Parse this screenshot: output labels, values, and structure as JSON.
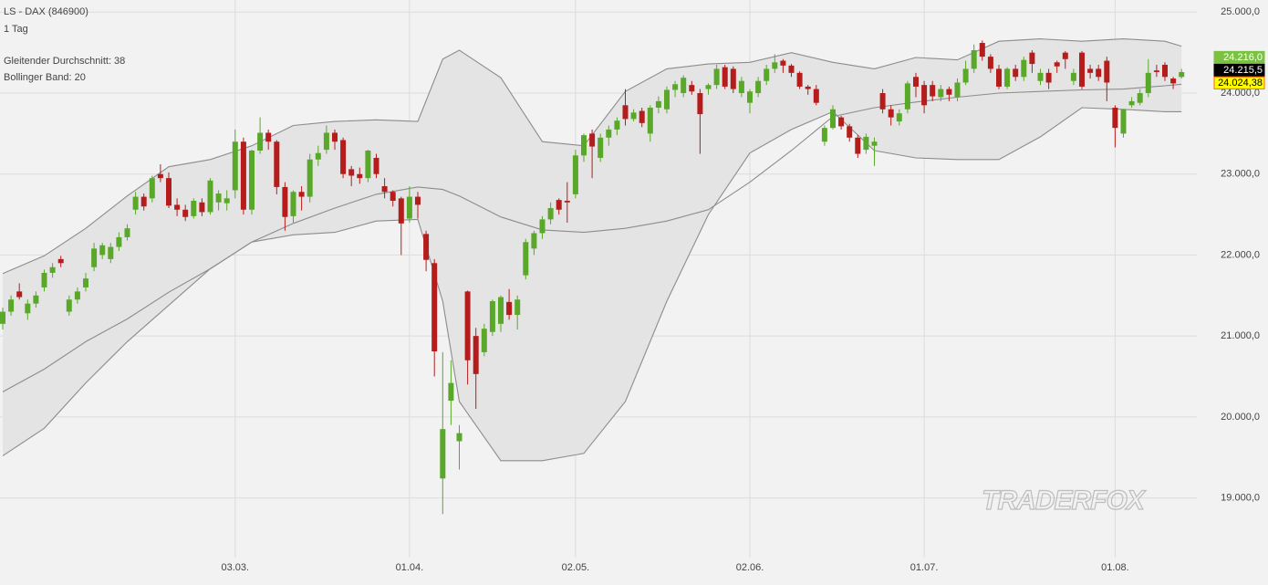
{
  "chart_data": {
    "type": "candlestick",
    "title": "LS - DAX (846900)",
    "subtitle": "1 Tag",
    "indicators": [
      "Gleitender Durchschnitt: 38",
      "Bollinger Band: 20"
    ],
    "watermark": "TRADERFOX",
    "up_color": "#5aa82a",
    "down_color": "#b51d1d",
    "band_color": "#8c8c8c",
    "band_fill": "#e4e4e4",
    "grid": true,
    "ylim": [
      18330,
      25150
    ],
    "yticks": [
      {
        "value": 19000,
        "label": "19.000,0"
      },
      {
        "value": 20000,
        "label": "20.000,0"
      },
      {
        "value": 21000,
        "label": "21.000,0"
      },
      {
        "value": 22000,
        "label": "22.000,0"
      },
      {
        "value": 23000,
        "label": "23.000,0"
      },
      {
        "value": 24000,
        "label": "24.000,0"
      },
      {
        "value": 25000,
        "label": "25.000,0"
      }
    ],
    "categories": [
      null,
      null,
      null,
      null,
      null,
      null,
      null,
      null,
      null,
      null,
      null,
      null,
      null,
      null,
      null,
      null,
      null,
      null,
      null,
      null,
      null,
      null,
      null,
      null,
      null,
      null,
      null,
      null,
      "03.03.",
      null,
      null,
      null,
      null,
      null,
      null,
      null,
      null,
      null,
      null,
      null,
      null,
      null,
      null,
      null,
      null,
      null,
      null,
      null,
      null,
      "01.04.",
      null,
      null,
      null,
      null,
      null,
      null,
      null,
      null,
      null,
      null,
      null,
      null,
      null,
      null,
      null,
      null,
      null,
      null,
      null,
      "02.05.",
      null,
      null,
      null,
      null,
      null,
      null,
      null,
      null,
      null,
      null,
      null,
      null,
      null,
      null,
      null,
      null,
      null,
      null,
      null,
      null,
      "02.06.",
      null,
      null,
      null,
      null,
      null,
      null,
      null,
      null,
      null,
      null,
      null,
      null,
      null,
      null,
      null,
      null,
      null,
      null,
      null,
      null,
      "01.07.",
      null,
      null,
      null,
      null,
      null,
      null,
      null,
      null,
      null,
      null,
      null,
      null,
      null,
      null,
      null,
      null,
      null,
      null,
      null,
      null,
      null,
      null,
      "01.08.",
      null,
      null,
      null,
      null,
      null,
      null,
      null,
      null
    ],
    "ohlc": [
      [
        21150,
        21350,
        21080,
        21300
      ],
      [
        21300,
        21500,
        21250,
        21450
      ],
      [
        21550,
        21650,
        21450,
        21480
      ],
      [
        21280,
        21450,
        21200,
        21400
      ],
      [
        21400,
        21550,
        21350,
        21500
      ],
      [
        21600,
        21820,
        21550,
        21780
      ],
      [
        21780,
        21900,
        21720,
        21850
      ],
      [
        21950,
        21990,
        21850,
        21900
      ],
      [
        21300,
        21500,
        21250,
        21450
      ],
      [
        21450,
        21600,
        21400,
        21550
      ],
      [
        21600,
        21780,
        21550,
        21710
      ],
      [
        21850,
        22150,
        21800,
        22080
      ],
      [
        22000,
        22150,
        21950,
        22120
      ],
      [
        21950,
        22150,
        21900,
        22100
      ],
      [
        22100,
        22280,
        22050,
        22220
      ],
      [
        22220,
        22380,
        22180,
        22330
      ],
      [
        22560,
        22780,
        22500,
        22720
      ],
      [
        22720,
        22760,
        22550,
        22600
      ],
      [
        22700,
        22980,
        22650,
        22950
      ],
      [
        23000,
        23120,
        22900,
        22950
      ],
      [
        22950,
        23020,
        22580,
        22610
      ],
      [
        22620,
        22700,
        22480,
        22560
      ],
      [
        22560,
        22620,
        22420,
        22470
      ],
      [
        22480,
        22700,
        22450,
        22670
      ],
      [
        22650,
        22700,
        22480,
        22530
      ],
      [
        22530,
        22950,
        22500,
        22920
      ],
      [
        22650,
        22800,
        22550,
        22760
      ],
      [
        22640,
        22800,
        22550,
        22700
      ],
      [
        22800,
        23550,
        22700,
        23400
      ],
      [
        23400,
        23450,
        22500,
        22560
      ],
      [
        22560,
        23300,
        22500,
        23290
      ],
      [
        23290,
        23700,
        23250,
        23510
      ],
      [
        23510,
        23550,
        23300,
        23400
      ],
      [
        23400,
        23420,
        22750,
        22840
      ],
      [
        22840,
        22900,
        22300,
        22470
      ],
      [
        22480,
        22800,
        22400,
        22780
      ],
      [
        22780,
        22850,
        22550,
        22720
      ],
      [
        22720,
        23250,
        22650,
        23180
      ],
      [
        23180,
        23350,
        23100,
        23260
      ],
      [
        23300,
        23600,
        23250,
        23510
      ],
      [
        23510,
        23550,
        23300,
        23400
      ],
      [
        23420,
        23450,
        22950,
        23000
      ],
      [
        23060,
        23100,
        22850,
        22980
      ],
      [
        23000,
        23080,
        22880,
        22950
      ],
      [
        22950,
        23300,
        22900,
        23290
      ],
      [
        23200,
        23250,
        22950,
        23000
      ],
      [
        22850,
        22950,
        22700,
        22780
      ],
      [
        22780,
        22800,
        22600,
        22670
      ],
      [
        22700,
        22720,
        22000,
        22390
      ],
      [
        22450,
        22850,
        22400,
        22720
      ],
      [
        22720,
        22780,
        22450,
        22620
      ],
      [
        22260,
        22300,
        21800,
        21940
      ],
      [
        21900,
        21950,
        20500,
        20810
      ],
      [
        19240,
        20800,
        18800,
        19850
      ],
      [
        20200,
        20700,
        19900,
        20420
      ],
      [
        19700,
        19900,
        19350,
        19800
      ],
      [
        21550,
        21560,
        20400,
        20700
      ],
      [
        21000,
        21100,
        20100,
        20530
      ],
      [
        20800,
        21150,
        20750,
        21090
      ],
      [
        21050,
        21450,
        21000,
        21430
      ],
      [
        21150,
        21500,
        21050,
        21480
      ],
      [
        21420,
        21580,
        21200,
        21260
      ],
      [
        21260,
        21500,
        21080,
        21450
      ],
      [
        21750,
        22200,
        21700,
        22160
      ],
      [
        22080,
        22300,
        22000,
        22270
      ],
      [
        22270,
        22480,
        22200,
        22440
      ],
      [
        22440,
        22650,
        22380,
        22580
      ],
      [
        22680,
        22700,
        22500,
        22560
      ],
      [
        22670,
        22900,
        22400,
        22650
      ],
      [
        22750,
        23300,
        22700,
        23230
      ],
      [
        23230,
        23500,
        23150,
        23480
      ],
      [
        23500,
        23550,
        22950,
        23340
      ],
      [
        23200,
        23500,
        23150,
        23450
      ],
      [
        23450,
        23600,
        23350,
        23550
      ],
      [
        23550,
        23700,
        23480,
        23660
      ],
      [
        23850,
        24050,
        23600,
        23680
      ],
      [
        23680,
        23800,
        23650,
        23760
      ],
      [
        23780,
        23820,
        23580,
        23630
      ],
      [
        23500,
        23850,
        23400,
        23820
      ],
      [
        23820,
        23960,
        23750,
        23900
      ],
      [
        23800,
        24080,
        23750,
        24040
      ],
      [
        24040,
        24150,
        23950,
        24110
      ],
      [
        24000,
        24220,
        23950,
        24190
      ],
      [
        24100,
        24150,
        23980,
        24020
      ],
      [
        24000,
        24050,
        23250,
        23740
      ],
      [
        24050,
        24120,
        23980,
        24100
      ],
      [
        24100,
        24350,
        24050,
        24300
      ],
      [
        24320,
        24350,
        24050,
        24080
      ],
      [
        24300,
        24330,
        24000,
        24050
      ],
      [
        24000,
        24200,
        23950,
        24150
      ],
      [
        23880,
        24050,
        23750,
        24020
      ],
      [
        24000,
        24200,
        23950,
        24150
      ],
      [
        24150,
        24350,
        24100,
        24300
      ],
      [
        24300,
        24480,
        24250,
        24380
      ],
      [
        24400,
        24420,
        24250,
        24340
      ],
      [
        24340,
        24360,
        24200,
        24250
      ],
      [
        24250,
        24270,
        24050,
        24080
      ],
      [
        24080,
        24100,
        23980,
        24050
      ],
      [
        24050,
        24100,
        23850,
        23880
      ],
      [
        23400,
        23600,
        23350,
        23570
      ],
      [
        23570,
        23850,
        23550,
        23800
      ],
      [
        23700,
        23720,
        23550,
        23590
      ],
      [
        23590,
        23620,
        23400,
        23450
      ],
      [
        23450,
        23480,
        23200,
        23250
      ],
      [
        23300,
        23500,
        23250,
        23460
      ],
      [
        23350,
        23450,
        23100,
        23400
      ],
      [
        24000,
        24050,
        23750,
        23800
      ],
      [
        23800,
        23850,
        23600,
        23700
      ],
      [
        23650,
        23800,
        23600,
        23750
      ],
      [
        23800,
        24150,
        23750,
        24120
      ],
      [
        24200,
        24250,
        23950,
        24080
      ],
      [
        24100,
        24150,
        23750,
        23850
      ],
      [
        24100,
        24150,
        23900,
        23960
      ],
      [
        23950,
        24100,
        23900,
        24050
      ],
      [
        24050,
        24080,
        23900,
        23980
      ],
      [
        23950,
        24180,
        23900,
        24130
      ],
      [
        24130,
        24400,
        24100,
        24300
      ],
      [
        24300,
        24600,
        24250,
        24530
      ],
      [
        24620,
        24650,
        24400,
        24450
      ],
      [
        24450,
        24480,
        24250,
        24300
      ],
      [
        24300,
        24350,
        24050,
        24080
      ],
      [
        24080,
        24320,
        24050,
        24300
      ],
      [
        24300,
        24350,
        24150,
        24200
      ],
      [
        24200,
        24450,
        24150,
        24410
      ],
      [
        24500,
        24530,
        24250,
        24360
      ],
      [
        24150,
        24300,
        24100,
        24250
      ],
      [
        24250,
        24300,
        24050,
        24130
      ],
      [
        24380,
        24400,
        24250,
        24330
      ],
      [
        24500,
        24520,
        24300,
        24420
      ],
      [
        24150,
        24300,
        24100,
        24250
      ],
      [
        24500,
        24520,
        24050,
        24080
      ],
      [
        24300,
        24350,
        24180,
        24250
      ],
      [
        24300,
        24350,
        24150,
        24200
      ],
      [
        24400,
        24450,
        23900,
        24130
      ],
      [
        23820,
        23850,
        23330,
        23570
      ],
      [
        23500,
        23800,
        23450,
        23800
      ],
      [
        23850,
        23950,
        23820,
        23900
      ],
      [
        23880,
        24050,
        23850,
        24000
      ],
      [
        24000,
        24420,
        23950,
        24250
      ],
      [
        24280,
        24350,
        24200,
        24260
      ],
      [
        24350,
        24380,
        24150,
        24200
      ],
      [
        24180,
        24200,
        24050,
        24120
      ],
      [
        24200,
        24300,
        24180,
        24260
      ]
    ],
    "bands": {
      "x": [
        0,
        5,
        10,
        15,
        20,
        25,
        30,
        35,
        40,
        45,
        50,
        53,
        55,
        60,
        65,
        70,
        75,
        80,
        85,
        90,
        95,
        100,
        105,
        110,
        115,
        120,
        125,
        130,
        135,
        140,
        142
      ],
      "upper": [
        21770,
        21990,
        22330,
        22730,
        23090,
        23180,
        23350,
        23600,
        23650,
        23670,
        23650,
        24420,
        24530,
        24190,
        23400,
        23350,
        24020,
        24300,
        24360,
        24380,
        24500,
        24380,
        24300,
        24440,
        24410,
        24640,
        24670,
        24640,
        24670,
        24640,
        24580
      ],
      "lower": [
        19520,
        19860,
        20420,
        20930,
        21380,
        21830,
        22160,
        22250,
        22280,
        22420,
        22440,
        21430,
        20190,
        19460,
        19460,
        19550,
        20190,
        21430,
        22500,
        23260,
        23550,
        23770,
        23290,
        23200,
        23180,
        23180,
        23460,
        23820,
        23800,
        23770,
        23770
      ],
      "ma": [
        20310,
        20590,
        20930,
        21210,
        21540,
        21830,
        22160,
        22390,
        22580,
        22750,
        22840,
        22810,
        22730,
        22470,
        22310,
        22280,
        22330,
        22420,
        22560,
        22900,
        23290,
        23710,
        23820,
        23890,
        23950,
        24000,
        24020,
        24040,
        24050,
        24090,
        24110
      ]
    },
    "price_labels": [
      {
        "value": 24216.0,
        "label": "24.216,0",
        "color": "#7cc242",
        "text_color": "#ffffff",
        "border": "#7cc242"
      },
      {
        "value": 24215.5,
        "label": "24.215,5",
        "color": "#000000",
        "text_color": "#ffffff",
        "border": "#000000"
      },
      {
        "value": 24024.38,
        "label": "24.024,38",
        "color": "#ffff00",
        "text_color": "#000000",
        "border": "#ff6a00"
      }
    ]
  }
}
